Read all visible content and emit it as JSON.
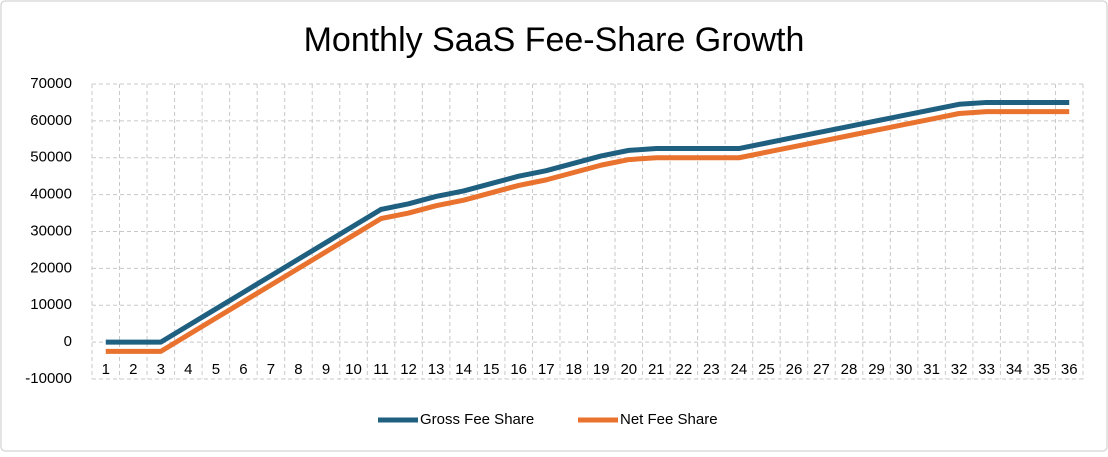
{
  "chart_data": {
    "type": "line",
    "title": "Monthly SaaS Fee-Share Growth",
    "categories": [
      "1",
      "2",
      "3",
      "4",
      "5",
      "6",
      "7",
      "8",
      "9",
      "10",
      "11",
      "12",
      "13",
      "14",
      "15",
      "16",
      "17",
      "18",
      "19",
      "20",
      "21",
      "22",
      "23",
      "24",
      "25",
      "26",
      "27",
      "28",
      "29",
      "30",
      "31",
      "32",
      "33",
      "34",
      "35",
      "36"
    ],
    "series": [
      {
        "name": "Gross Fee Share",
        "color": "#1f5f80",
        "values": [
          0,
          0,
          0,
          4500,
          9000,
          13500,
          18000,
          22500,
          27000,
          31500,
          36000,
          37500,
          39500,
          41000,
          43000,
          45000,
          46500,
          48500,
          50500,
          52000,
          52500,
          52500,
          52500,
          52500,
          54000,
          55500,
          57000,
          58500,
          60000,
          61500,
          63000,
          64500,
          65000,
          65000,
          65000,
          65000
        ]
      },
      {
        "name": "Net Fee Share",
        "color": "#e8722e",
        "values": [
          -2500,
          -2500,
          -2500,
          2000,
          6500,
          11000,
          15500,
          20000,
          24500,
          29000,
          33500,
          35000,
          37000,
          38500,
          40500,
          42500,
          44000,
          46000,
          48000,
          49500,
          50000,
          50000,
          50000,
          50000,
          51500,
          53000,
          54500,
          56000,
          57500,
          59000,
          60500,
          62000,
          62500,
          62500,
          62500,
          62500
        ]
      }
    ],
    "ylim": [
      -10000,
      70000
    ],
    "yticks": [
      -10000,
      0,
      10000,
      20000,
      30000,
      40000,
      50000,
      60000,
      70000
    ],
    "grid": true,
    "legend": "bottom"
  }
}
